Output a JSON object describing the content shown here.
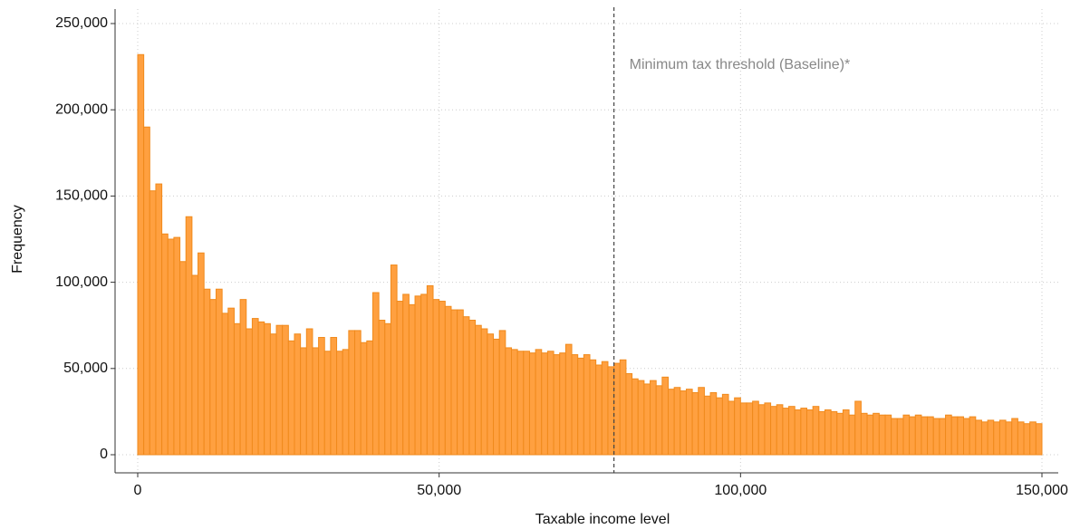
{
  "chart_data": {
    "type": "histogram",
    "x_label": "Taxable income level",
    "y_label": "Frequency",
    "bins": [
      0,
      1000,
      2000,
      3000,
      4000,
      5000,
      6000,
      7000,
      8000,
      9000,
      10000,
      11000,
      12000,
      13000,
      14000,
      15000,
      16000,
      17000,
      18000,
      19000,
      20000,
      21000,
      22000,
      23000,
      24000,
      25000,
      26000,
      27000,
      28000,
      29000,
      30000,
      31000,
      32000,
      33000,
      34000,
      35000,
      36000,
      37000,
      38000,
      39000,
      40000,
      41000,
      42000,
      43000,
      44000,
      45000,
      46000,
      47000,
      48000,
      49000,
      50000,
      51000,
      52000,
      53000,
      54000,
      55000,
      56000,
      57000,
      58000,
      59000,
      60000,
      61000,
      62000,
      63000,
      64000,
      65000,
      66000,
      67000,
      68000,
      69000,
      70000,
      71000,
      72000,
      73000,
      74000,
      75000,
      76000,
      77000,
      78000,
      79000,
      80000,
      81000,
      82000,
      83000,
      84000,
      85000,
      86000,
      87000,
      88000,
      89000,
      90000,
      91000,
      92000,
      93000,
      94000,
      95000,
      96000,
      97000,
      98000,
      99000,
      100000,
      101000,
      102000,
      103000,
      104000,
      105000,
      106000,
      107000,
      108000,
      109000,
      110000,
      111000,
      112000,
      113000,
      114000,
      115000,
      116000,
      117000,
      118000,
      119000,
      120000,
      121000,
      122000,
      123000,
      124000,
      125000,
      126000,
      127000,
      128000,
      129000,
      130000,
      131000,
      132000,
      133000,
      134000,
      135000,
      136000,
      137000,
      138000,
      139000,
      140000,
      141000,
      142000,
      143000,
      144000,
      145000,
      146000,
      147000,
      148000,
      149000,
      150000
    ],
    "values": [
      232000,
      190000,
      153000,
      157000,
      128000,
      125000,
      126000,
      112000,
      138000,
      104000,
      117000,
      96000,
      90000,
      96000,
      82000,
      85000,
      76000,
      90000,
      73000,
      79000,
      77000,
      76000,
      70000,
      75000,
      75000,
      66000,
      70000,
      62000,
      73000,
      62000,
      68000,
      60000,
      68000,
      60000,
      61000,
      72000,
      72000,
      65000,
      66000,
      94000,
      78000,
      76000,
      110000,
      89000,
      93000,
      87000,
      92000,
      93000,
      98000,
      90000,
      89000,
      86000,
      84000,
      84000,
      80000,
      78000,
      75000,
      73000,
      70000,
      67000,
      72000,
      62000,
      61000,
      60000,
      60000,
      59000,
      61000,
      59000,
      60000,
      58000,
      59000,
      64000,
      58000,
      56000,
      58000,
      55000,
      52000,
      54000,
      51000,
      53000,
      55000,
      47000,
      44000,
      43000,
      41000,
      43000,
      40000,
      45000,
      38000,
      39000,
      37000,
      38000,
      36000,
      39000,
      34000,
      36000,
      33000,
      35000,
      31000,
      33000,
      30000,
      30000,
      31000,
      29000,
      30000,
      28000,
      29000,
      27000,
      28000,
      26000,
      27000,
      26000,
      28000,
      25000,
      26000,
      25000,
      24000,
      26000,
      23000,
      31000,
      24000,
      23000,
      24000,
      23000,
      23000,
      21000,
      21000,
      23000,
      22000,
      23000,
      22000,
      22000,
      21000,
      21000,
      23000,
      22000,
      22000,
      21000,
      22000,
      20000,
      19000,
      20000,
      19000,
      20000,
      19000,
      21000,
      19000,
      18000,
      19000,
      18000
    ],
    "color": "#ffa040",
    "edge_color": "#f08a1c",
    "xlim": [
      0,
      150000
    ],
    "xticks": [
      0,
      {
        "value": 50000,
        "label": "50,000"
      },
      {
        "value": 100000,
        "label": "100,000"
      },
      {
        "value": 150000,
        "label": "150,000"
      }
    ],
    "ylim": [
      0,
      250000
    ],
    "yticks": [
      0,
      {
        "value": 50000,
        "label": "50,000"
      },
      {
        "value": 100000,
        "label": "100,000"
      },
      {
        "value": 150000,
        "label": "150,000"
      },
      {
        "value": 200000,
        "label": "200,000"
      },
      {
        "value": 250000,
        "label": "250,000"
      }
    ],
    "grid": true,
    "annotation": {
      "text": "Minimum tax threshold (Baseline)*",
      "x": 79000
    }
  }
}
